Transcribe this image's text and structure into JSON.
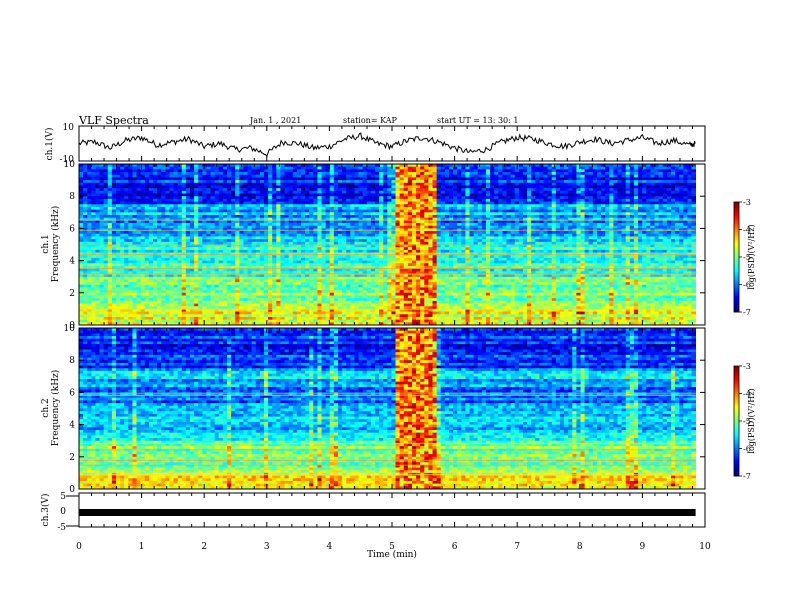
{
  "header": {
    "title": "VLF Spectra",
    "date": "Jan. 1 , 2021",
    "station": "station= KAP",
    "start": "start UT =  13: 30: 1"
  },
  "chart_data": [
    {
      "type": "line",
      "id": "ch1-waveform",
      "ylabel": "ch.1(V)",
      "ylim": [
        -10,
        10
      ],
      "yticks": [
        "10",
        "-10"
      ],
      "xlim": [
        0,
        10
      ],
      "x": [
        0,
        0.25,
        0.5,
        0.75,
        1.0,
        1.25,
        1.5,
        1.75,
        2.0,
        2.25,
        2.5,
        2.75,
        3.0,
        3.25,
        3.5,
        3.75,
        4.0,
        4.25,
        4.5,
        4.75,
        5.0,
        5.25,
        5.5,
        5.75,
        6.0,
        6.25,
        6.5,
        6.75,
        7.0,
        7.25,
        7.5,
        7.75,
        8.0,
        8.25,
        8.5,
        8.75,
        9.0,
        9.25,
        9.5,
        9.75,
        9.85
      ],
      "values": [
        0,
        1,
        -3,
        2,
        4,
        -1,
        1,
        3,
        -2,
        0,
        -4,
        -3,
        -7,
        1,
        0,
        -3,
        -2,
        3,
        5,
        0,
        -2,
        2,
        4,
        1,
        -3,
        -6,
        -4,
        1,
        4,
        3,
        0,
        -2,
        1,
        3,
        0,
        2,
        4,
        0,
        2,
        -1,
        0
      ],
      "color": "#000000"
    },
    {
      "type": "heatmap",
      "id": "ch1-spectrogram",
      "ylabel": "ch.1",
      "ylabel2": "Frequency  (kHz)",
      "ylim": [
        0,
        10
      ],
      "yticks": [
        "0",
        "2",
        "4",
        "6",
        "8",
        "10"
      ],
      "xlim": [
        0,
        10
      ],
      "colorbar": {
        "label": "log(PSD)(V²/Hz)",
        "range": [
          -7,
          -3
        ],
        "ticks": [
          "-3",
          "-4",
          "-5",
          "-6",
          "-7"
        ]
      },
      "burst_interval_min": [
        5.0,
        5.65
      ]
    },
    {
      "type": "heatmap",
      "id": "ch2-spectrogram",
      "ylabel": "ch.2",
      "ylabel2": "Frequency  (kHz)",
      "ylim": [
        0,
        10
      ],
      "yticks": [
        "0",
        "2",
        "4",
        "6",
        "8",
        "10"
      ],
      "xlim": [
        0,
        10
      ],
      "colorbar": {
        "label": "log(PSD)(V²/Hz)",
        "range": [
          -7,
          -3
        ],
        "ticks": [
          "-3",
          "-4",
          "-5",
          "-6",
          "-7"
        ]
      },
      "burst_interval_min": [
        5.0,
        5.65
      ]
    },
    {
      "type": "line",
      "id": "ch3-waveform",
      "ylabel": "ch.3(V)",
      "ylim": [
        -5,
        5
      ],
      "yticks": [
        "5",
        "0",
        "-5"
      ],
      "xlim": [
        0,
        10
      ],
      "x": [
        0,
        9.85
      ],
      "values": [
        -0.5,
        -0.5
      ],
      "color": "#000000"
    }
  ],
  "xaxis": {
    "label": "Time  (min)",
    "ticks": [
      "0",
      "1",
      "2",
      "3",
      "4",
      "5",
      "6",
      "7",
      "8",
      "9",
      "10"
    ]
  }
}
